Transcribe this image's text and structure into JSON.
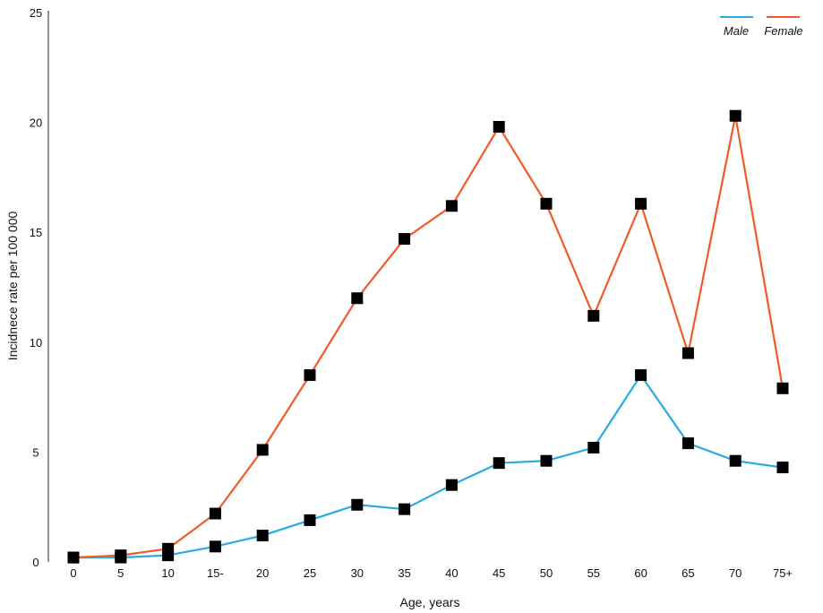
{
  "chart_data": {
    "type": "line",
    "title": "",
    "xlabel": "Age, years",
    "ylabel": "Incidnece rate per 100 000",
    "categories": [
      "0",
      "5",
      "10",
      "15-",
      "20",
      "25",
      "30",
      "35",
      "40",
      "45",
      "50",
      "55",
      "60",
      "65",
      "70",
      "75+"
    ],
    "ylim": [
      0,
      25
    ],
    "yticks": [
      0,
      5,
      10,
      15,
      20,
      25
    ],
    "grid": false,
    "legend_position": "top-right",
    "series": [
      {
        "name": "Male",
        "color": "#29abe2",
        "values": [
          0.2,
          0.2,
          0.3,
          0.7,
          1.2,
          1.9,
          2.6,
          2.4,
          3.5,
          4.5,
          4.6,
          5.2,
          8.5,
          5.4,
          4.6,
          4.3
        ]
      },
      {
        "name": "Female",
        "color": "#f15a29",
        "values": [
          0.2,
          0.3,
          0.6,
          2.2,
          5.1,
          8.5,
          12.0,
          14.7,
          16.2,
          19.8,
          16.3,
          11.2,
          16.3,
          9.5,
          20.3,
          7.9
        ]
      }
    ],
    "marker": "square",
    "marker_color": "#000000"
  }
}
